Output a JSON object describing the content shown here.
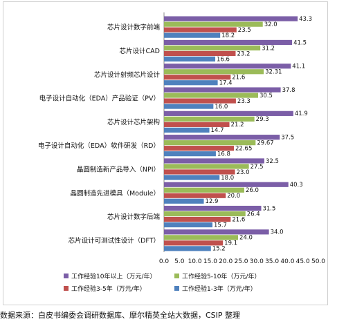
{
  "chart_data": {
    "type": "bar",
    "orientation": "horizontal",
    "categories": [
      "芯片设计数字前端",
      "芯片设计CAD",
      "芯片设计射频芯片设计",
      "电子设计自动化（EDA）产品验证（PV）",
      "芯片设计芯片架构",
      "电子设计自动化（EDA）软件研发（RD）",
      "晶圆制造新产品导入（NPI）",
      "晶圆制造先进模具（Module）",
      "芯片设计数字后端",
      "芯片设计可测试性设计（DFT）"
    ],
    "series": [
      {
        "name": "工作经验10年以上（万元/年）",
        "color": "#7b5ea7",
        "values": [
          43.3,
          41.5,
          41.1,
          37.8,
          41.9,
          37.5,
          32.5,
          40.3,
          31.5,
          34.0
        ],
        "labels": [
          "43.3",
          "41.5",
          "41.1",
          "37.8",
          "41.9",
          "37.5",
          "32.5",
          "40.3",
          "31.5",
          "34.0"
        ]
      },
      {
        "name": "工作经验5-10年（万元/年）",
        "color": "#9bbb59",
        "values": [
          32.0,
          31.2,
          32.31,
          30.5,
          29.3,
          29.67,
          27.5,
          26.0,
          26.4,
          24.0
        ],
        "labels": [
          "32.0",
          "31.2",
          "32.31",
          "30.5",
          "29.3",
          "29.67",
          "27.5",
          "26.0",
          "26.4",
          "24.0"
        ]
      },
      {
        "name": "工作经验3-5年（万元/年）",
        "color": "#c0504d",
        "values": [
          23.5,
          23.2,
          21.6,
          23.3,
          21.2,
          22.65,
          23.0,
          20.0,
          21.6,
          19.1
        ],
        "labels": [
          "23.5",
          "23.2",
          "21.6",
          "23.3",
          "21.2",
          "22.65",
          "23.0",
          "20.0",
          "21.6",
          "19.1"
        ]
      },
      {
        "name": "工作经验1-3年（万元/年）",
        "color": "#4f81bd",
        "values": [
          18.2,
          16.6,
          17.4,
          16.0,
          14.7,
          16.8,
          18.0,
          12.9,
          15.7,
          15.2
        ],
        "labels": [
          "18.2",
          "16.6",
          "17.4",
          "16.0",
          "14.7",
          "16.8",
          "18.0",
          "12.9",
          "15.7",
          "15.2"
        ]
      }
    ],
    "xlim": [
      0,
      50
    ],
    "xticks": [
      "0.0",
      "5.0",
      "10.0",
      "15.0",
      "20.0",
      "25.0",
      "30.0",
      "35.0",
      "40.0",
      "45.0",
      "50.0"
    ],
    "legend_position": "bottom",
    "grid": false
  },
  "source": "数据来源：白皮书编委会调研数据库、摩尔精英全站大数据，CSIP 整理"
}
